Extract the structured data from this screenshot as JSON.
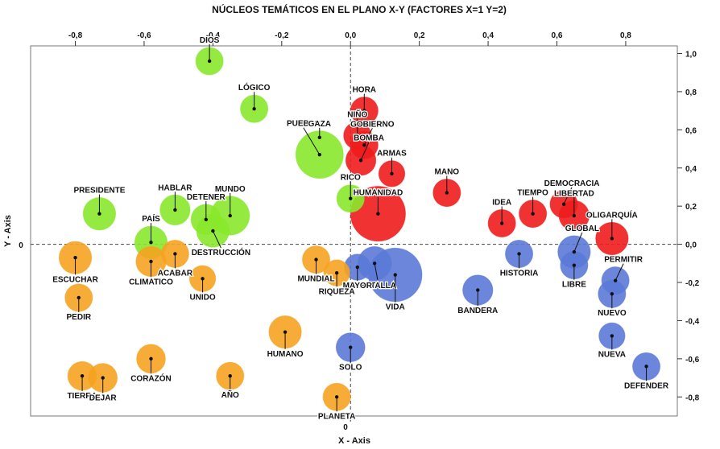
{
  "chart_data": {
    "type": "bubble-scatter",
    "title": "NÚCLEOS TEMÁTICOS EN EL PLANO X-Y  (FACTORES X=1 Y=2)",
    "xlabel": "X - Axis",
    "ylabel": "Y - Axis",
    "xlim": [
      -0.93,
      0.95
    ],
    "ylim": [
      -0.9,
      1.04
    ],
    "x_ticks": [
      {
        "v": -0.8,
        "label": "-0,8"
      },
      {
        "v": -0.6,
        "label": "-0,6"
      },
      {
        "v": -0.4,
        "label": "-0,4"
      },
      {
        "v": -0.2,
        "label": "-0,2"
      },
      {
        "v": 0.0,
        "label": "0,0"
      },
      {
        "v": 0.2,
        "label": "0,2"
      },
      {
        "v": 0.4,
        "label": "0,4"
      },
      {
        "v": 0.6,
        "label": "0,6"
      },
      {
        "v": 0.8,
        "label": "0,8"
      }
    ],
    "y_ticks": [
      {
        "v": 1.0,
        "label": "1,0"
      },
      {
        "v": 0.8,
        "label": "0,8"
      },
      {
        "v": 0.6,
        "label": "0,6"
      },
      {
        "v": 0.4,
        "label": "0,4"
      },
      {
        "v": 0.2,
        "label": "0,2"
      },
      {
        "v": 0.0,
        "label": "0,0"
      },
      {
        "v": -0.2,
        "label": "-0,2"
      },
      {
        "v": -0.4,
        "label": "-0,4"
      },
      {
        "v": -0.6,
        "label": "-0,6"
      },
      {
        "v": -0.8,
        "label": "-0,8"
      }
    ],
    "bottom_zero_label": "0",
    "left_zero_label": "0",
    "colors": {
      "green": "#88e82b",
      "red": "#ee1c1c",
      "blue": "#5b79d6",
      "orange": "#f5a320"
    },
    "points": [
      {
        "label": "DIOS",
        "x": -0.41,
        "y": 0.96,
        "size": 1,
        "group": "green",
        "lx": 0,
        "ly": -1
      },
      {
        "label": "LÓGICO",
        "x": -0.28,
        "y": 0.71,
        "size": 1,
        "group": "green",
        "lx": 0,
        "ly": -1
      },
      {
        "label": "PUEBLO",
        "x": -0.09,
        "y": 0.47,
        "size": 3,
        "group": "green",
        "lx": -2,
        "ly": -1
      },
      {
        "label": "GAZA",
        "x": -0.09,
        "y": 0.56,
        "size": 0,
        "group": "green",
        "lx": 0,
        "ly": -1
      },
      {
        "label": "RICO",
        "x": 0.0,
        "y": 0.24,
        "size": 1,
        "group": "green",
        "lx": 0,
        "ly": -1
      },
      {
        "label": "PRESIDENTE",
        "x": -0.73,
        "y": 0.16,
        "size": 1.4,
        "group": "green",
        "lx": 0,
        "ly": -1
      },
      {
        "label": "HABLAR",
        "x": -0.51,
        "y": 0.18,
        "size": 1.2,
        "group": "green",
        "lx": 0,
        "ly": -1
      },
      {
        "label": "DETENER",
        "x": -0.42,
        "y": 0.13,
        "size": 1.2,
        "group": "green",
        "lx": 0,
        "ly": -1
      },
      {
        "label": "MUNDO",
        "x": -0.35,
        "y": 0.15,
        "size": 2,
        "group": "green",
        "lx": 0,
        "ly": -1
      },
      {
        "label": "PAÍS",
        "x": -0.58,
        "y": 0.01,
        "size": 1.4,
        "group": "green",
        "lx": 0,
        "ly": -1
      },
      {
        "label": "DESTRUCCIÓN",
        "x": -0.4,
        "y": 0.07,
        "size": 1.4,
        "group": "green",
        "lx": 1,
        "ly": 1
      },
      {
        "label": "HORA",
        "x": 0.04,
        "y": 0.7,
        "size": 1,
        "group": "red",
        "lx": 0,
        "ly": -1
      },
      {
        "label": "NIÑO",
        "x": 0.02,
        "y": 0.57,
        "size": 1,
        "group": "red",
        "lx": 0,
        "ly": -1
      },
      {
        "label": "GOBIERNO",
        "x": 0.04,
        "y": 0.52,
        "size": 1,
        "group": "red",
        "lx": 1,
        "ly": -1
      },
      {
        "label": "BOMBA",
        "x": 0.03,
        "y": 0.44,
        "size": 1.2,
        "group": "red",
        "lx": 1,
        "ly": -1
      },
      {
        "label": "ARMAS",
        "x": 0.12,
        "y": 0.37,
        "size": 0.9,
        "group": "red",
        "lx": 0,
        "ly": -1
      },
      {
        "label": "HUMANIDAD",
        "x": 0.08,
        "y": 0.16,
        "size": 4,
        "group": "red",
        "lx": 0,
        "ly": -2
      },
      {
        "label": "MANO",
        "x": 0.28,
        "y": 0.27,
        "size": 1,
        "group": "red",
        "lx": 0,
        "ly": -1
      },
      {
        "label": "IDEA",
        "x": 0.44,
        "y": 0.11,
        "size": 1,
        "group": "red",
        "lx": 0,
        "ly": -1
      },
      {
        "label": "TIEMPO",
        "x": 0.53,
        "y": 0.16,
        "size": 1,
        "group": "red",
        "lx": 0,
        "ly": -1
      },
      {
        "label": "DEMOCRACIA",
        "x": 0.62,
        "y": 0.21,
        "size": 1,
        "group": "red",
        "lx": 1,
        "ly": -1
      },
      {
        "label": "LIBERTAD",
        "x": 0.65,
        "y": 0.15,
        "size": 1.2,
        "group": "red",
        "lx": 0,
        "ly": -1
      },
      {
        "label": "OLIGARQUÍA",
        "x": 0.76,
        "y": 0.03,
        "size": 1.4,
        "group": "red",
        "lx": 0,
        "ly": -1
      },
      {
        "label": "BATALLA",
        "x": 0.07,
        "y": -0.1,
        "size": 1.5,
        "group": "blue",
        "lx": 0.4,
        "ly": 1
      },
      {
        "label": "VIDA",
        "x": 0.13,
        "y": -0.16,
        "size": 3.8,
        "group": "blue",
        "lx": 0,
        "ly": 1
      },
      {
        "label": "MAYOR",
        "x": 0.02,
        "y": -0.12,
        "size": 0.9,
        "group": "blue",
        "lx": 0,
        "ly": 1
      },
      {
        "label": "SOLO",
        "x": 0.0,
        "y": -0.54,
        "size": 1.1,
        "group": "blue",
        "lx": 0,
        "ly": 1
      },
      {
        "label": "HISTORIA",
        "x": 0.49,
        "y": -0.05,
        "size": 1,
        "group": "blue",
        "lx": 0,
        "ly": 1
      },
      {
        "label": "GLOBAL",
        "x": 0.65,
        "y": -0.04,
        "size": 1.4,
        "group": "blue",
        "lx": 1,
        "ly": -1
      },
      {
        "label": "LIBRE",
        "x": 0.65,
        "y": -0.11,
        "size": 1,
        "group": "blue",
        "lx": 0,
        "ly": 1
      },
      {
        "label": "BANDERA",
        "x": 0.37,
        "y": -0.24,
        "size": 1.2,
        "group": "blue",
        "lx": 0,
        "ly": 1
      },
      {
        "label": "PERMITIR",
        "x": 0.77,
        "y": -0.19,
        "size": 1,
        "group": "blue",
        "lx": 1,
        "ly": -1
      },
      {
        "label": "NUEVO",
        "x": 0.76,
        "y": -0.26,
        "size": 1,
        "group": "blue",
        "lx": 0,
        "ly": 1
      },
      {
        "label": "NUEVA",
        "x": 0.76,
        "y": -0.48,
        "size": 0.9,
        "group": "blue",
        "lx": 0,
        "ly": 1
      },
      {
        "label": "DEFENDER",
        "x": 0.86,
        "y": -0.64,
        "size": 1,
        "group": "blue",
        "lx": 0,
        "ly": 1
      },
      {
        "label": "ESCUCHAR",
        "x": -0.8,
        "y": -0.07,
        "size": 1.4,
        "group": "orange",
        "lx": 0,
        "ly": 1
      },
      {
        "label": "CLIMATICO",
        "x": -0.58,
        "y": -0.09,
        "size": 1.2,
        "group": "orange",
        "lx": 0,
        "ly": 1
      },
      {
        "label": "ACABAR",
        "x": -0.51,
        "y": -0.05,
        "size": 1,
        "group": "orange",
        "lx": 0,
        "ly": 1
      },
      {
        "label": "UNIDO",
        "x": -0.43,
        "y": -0.18,
        "size": 0.9,
        "group": "orange",
        "lx": 0,
        "ly": 1
      },
      {
        "label": "PEDIR",
        "x": -0.79,
        "y": -0.28,
        "size": 1,
        "group": "orange",
        "lx": 0,
        "ly": 1
      },
      {
        "label": "MUNDIAL",
        "x": -0.1,
        "y": -0.08,
        "size": 1,
        "group": "orange",
        "lx": 0,
        "ly": 1
      },
      {
        "label": "RIQUEZA",
        "x": -0.04,
        "y": -0.15,
        "size": 0.9,
        "group": "orange",
        "lx": 0,
        "ly": 1
      },
      {
        "label": "HUMANO",
        "x": -0.19,
        "y": -0.46,
        "size": 1.4,
        "group": "orange",
        "lx": 0,
        "ly": 1
      },
      {
        "label": "CORAZÓN",
        "x": -0.58,
        "y": -0.6,
        "size": 1.1,
        "group": "orange",
        "lx": 0,
        "ly": 1
      },
      {
        "label": "TIERRA",
        "x": -0.78,
        "y": -0.69,
        "size": 1.1,
        "group": "orange",
        "lx": 0,
        "ly": 1
      },
      {
        "label": "DEJAR",
        "x": -0.72,
        "y": -0.7,
        "size": 1.1,
        "group": "orange",
        "lx": 0,
        "ly": 1
      },
      {
        "label": "AÑO",
        "x": -0.35,
        "y": -0.69,
        "size": 1,
        "group": "orange",
        "lx": 0,
        "ly": 1
      },
      {
        "label": "PLANETA",
        "x": -0.04,
        "y": -0.8,
        "size": 1,
        "group": "orange",
        "lx": 0,
        "ly": 1
      }
    ]
  }
}
